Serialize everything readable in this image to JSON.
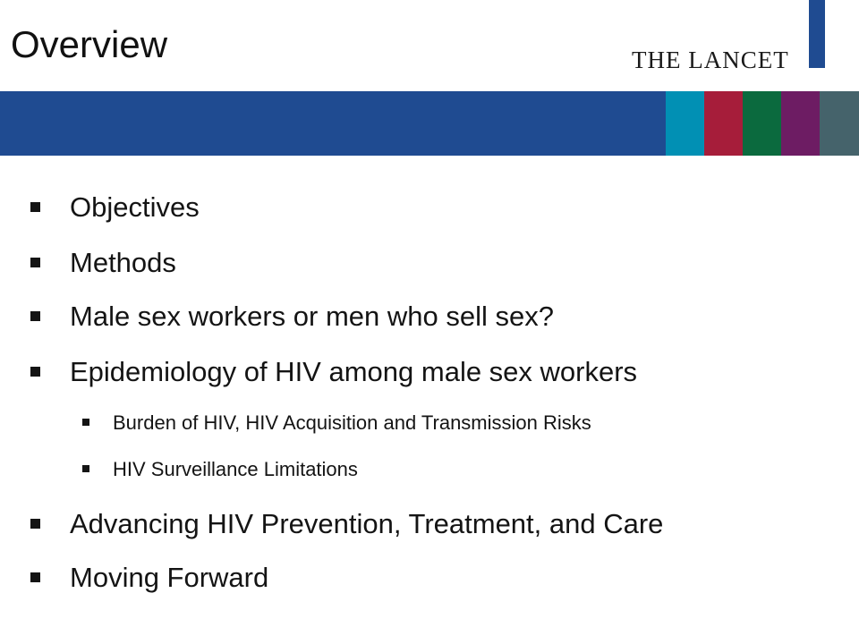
{
  "slide": {
    "title": "Overview",
    "brand": "THE LANCET",
    "colors": {
      "banner": "#1f4b91",
      "swatches": [
        "#0190b4",
        "#a61d3a",
        "#0b6a3e",
        "#6d1c63",
        "#45636b"
      ]
    }
  },
  "outline": [
    {
      "level": 1,
      "text": "Objectives"
    },
    {
      "level": 1,
      "text": "Methods"
    },
    {
      "level": 1,
      "text": "Male sex workers or men who sell sex?"
    },
    {
      "level": 1,
      "text": "Epidemiology of HIV among male sex workers"
    },
    {
      "level": 2,
      "text": "Burden of HIV, HIV Acquisition and Transmission Risks"
    },
    {
      "level": 2,
      "text": "HIV Surveillance Limitations"
    },
    {
      "level": 1,
      "text": "Advancing HIV Prevention, Treatment, and Care"
    },
    {
      "level": 1,
      "text": "Moving Forward"
    }
  ]
}
